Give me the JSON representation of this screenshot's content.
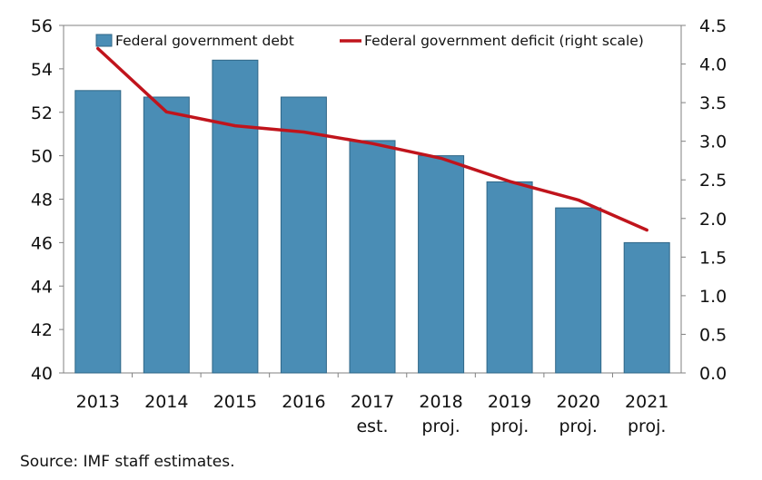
{
  "chart_data": {
    "type": "bar+line",
    "categories": [
      [
        "2013"
      ],
      [
        "2014"
      ],
      [
        "2015"
      ],
      [
        "2016"
      ],
      [
        "2017",
        "est."
      ],
      [
        "2018",
        "proj."
      ],
      [
        "2019",
        "proj."
      ],
      [
        "2020",
        "proj."
      ],
      [
        "2021",
        "proj."
      ]
    ],
    "series": [
      {
        "name": "Federal government debt",
        "type": "bar",
        "axis": "left",
        "color": "#4a8db5",
        "values": [
          53.0,
          52.7,
          54.4,
          52.7,
          50.7,
          50.0,
          48.8,
          47.6,
          46.0
        ]
      },
      {
        "name": "Federal government deficit (right scale)",
        "type": "line",
        "axis": "right",
        "color": "#c0141c",
        "values": [
          4.2,
          3.38,
          3.2,
          3.12,
          2.97,
          2.78,
          2.48,
          2.24,
          1.85
        ]
      }
    ],
    "left_axis": {
      "min": 40,
      "max": 56,
      "step": 2,
      "ticks": [
        "40",
        "42",
        "44",
        "46",
        "48",
        "50",
        "52",
        "54",
        "56"
      ]
    },
    "right_axis": {
      "min": 0,
      "max": 4.5,
      "step": 0.5,
      "ticks": [
        "0.0",
        "0.5",
        "1.0",
        "1.5",
        "2.0",
        "2.5",
        "3.0",
        "3.5",
        "4.0",
        "4.5"
      ]
    },
    "legend_position": "top",
    "grid": false
  },
  "source": "Source: IMF staff estimates."
}
